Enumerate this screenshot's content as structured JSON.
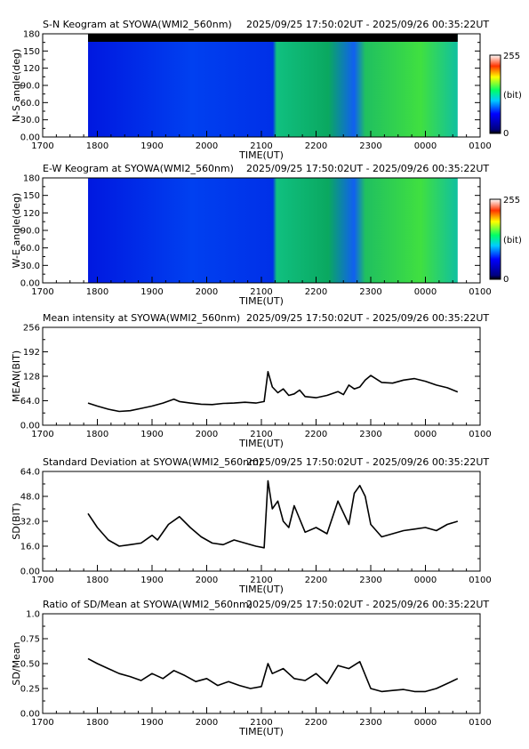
{
  "figure": {
    "station": "SYOWA",
    "instrument": "WMI2_560nm",
    "time_range": "2025/09/25 17:50:02UT - 2025/09/26 00:35:22UT",
    "xlabel": "TIME(UT)",
    "x_ticks": [
      "1700",
      "1800",
      "1900",
      "2000",
      "2100",
      "2200",
      "2300",
      "0000",
      "0100"
    ]
  },
  "keograms": [
    {
      "title": "S-N Keogram at SYOWA(WMI2_560nm)",
      "ylabel": "N-S angle(deg)",
      "y_ticks": [
        "0.00",
        "30.0",
        "60.0",
        "90.0",
        "120",
        "150",
        "180"
      ],
      "colorbar": {
        "min_label": "0",
        "max_label": "255",
        "unit_label": "(bit)"
      }
    },
    {
      "title": "E-W Keogram at SYOWA(WMI2_560nm)",
      "ylabel": "W-E angle(deg)",
      "y_ticks": [
        "0.00",
        "30.0",
        "60.0",
        "90.0",
        "120",
        "150",
        "180"
      ],
      "colorbar": {
        "min_label": "0",
        "max_label": "255",
        "unit_label": "(bit)"
      }
    }
  ],
  "chart_data": [
    {
      "type": "line",
      "title": "Mean intensity at SYOWA(WMI2_560nm)",
      "ylabel": "MEAN(BIT)",
      "xlabel": "TIME(UT)",
      "xlim": [
        17.0,
        25.0
      ],
      "ylim": [
        0,
        256
      ],
      "y_ticks": [
        "0.00",
        "64.0",
        "128",
        "192",
        "256"
      ],
      "x": [
        17.83,
        18.0,
        18.2,
        18.4,
        18.6,
        18.8,
        19.0,
        19.2,
        19.4,
        19.5,
        19.7,
        19.9,
        20.1,
        20.3,
        20.5,
        20.7,
        20.9,
        21.05,
        21.12,
        21.2,
        21.3,
        21.4,
        21.5,
        21.6,
        21.7,
        21.8,
        22.0,
        22.2,
        22.4,
        22.5,
        22.6,
        22.7,
        22.8,
        22.9,
        23.0,
        23.2,
        23.4,
        23.6,
        23.8,
        24.0,
        24.2,
        24.4,
        24.59
      ],
      "series": [
        {
          "values": [
            58,
            50,
            42,
            36,
            38,
            44,
            50,
            58,
            68,
            62,
            58,
            55,
            54,
            57,
            58,
            60,
            58,
            62,
            140,
            100,
            85,
            95,
            78,
            82,
            92,
            75,
            72,
            78,
            88,
            80,
            105,
            95,
            100,
            118,
            130,
            112,
            110,
            118,
            122,
            115,
            105,
            98,
            87
          ]
        }
      ]
    },
    {
      "type": "line",
      "title": "Standard Deviation at SYOWA(WMI2_560nm)",
      "ylabel": "SD(BIT)",
      "xlabel": "TIME(UT)",
      "xlim": [
        17.0,
        25.0
      ],
      "ylim": [
        0,
        64
      ],
      "y_ticks": [
        "0.00",
        "16.0",
        "32.0",
        "48.0",
        "64.0"
      ],
      "x": [
        17.83,
        18.0,
        18.2,
        18.4,
        18.6,
        18.8,
        19.0,
        19.1,
        19.3,
        19.5,
        19.7,
        19.9,
        20.1,
        20.3,
        20.5,
        20.7,
        20.9,
        21.05,
        21.12,
        21.2,
        21.3,
        21.4,
        21.5,
        21.6,
        21.8,
        22.0,
        22.2,
        22.4,
        22.6,
        22.7,
        22.8,
        22.9,
        23.0,
        23.2,
        23.4,
        23.6,
        23.8,
        24.0,
        24.2,
        24.4,
        24.59
      ],
      "series": [
        {
          "values": [
            37,
            28,
            20,
            16,
            17,
            18,
            23,
            20,
            30,
            35,
            28,
            22,
            18,
            17,
            20,
            18,
            16,
            15,
            58,
            40,
            45,
            32,
            28,
            42,
            25,
            28,
            24,
            45,
            30,
            50,
            55,
            48,
            30,
            22,
            24,
            26,
            27,
            28,
            26,
            30,
            32
          ]
        }
      ]
    },
    {
      "type": "line",
      "title": "Ratio of SD/Mean at SYOWA(WMI2_560nm)",
      "ylabel": "SD/Mean",
      "xlabel": "TIME(UT)",
      "xlim": [
        17.0,
        25.0
      ],
      "ylim": [
        0,
        1
      ],
      "y_ticks": [
        "0.00",
        "0.25",
        "0.50",
        "0.75",
        "1.0"
      ],
      "x": [
        17.83,
        18.0,
        18.2,
        18.4,
        18.6,
        18.8,
        19.0,
        19.2,
        19.4,
        19.6,
        19.8,
        20.0,
        20.2,
        20.4,
        20.6,
        20.8,
        21.0,
        21.12,
        21.2,
        21.4,
        21.6,
        21.8,
        22.0,
        22.2,
        22.4,
        22.6,
        22.8,
        23.0,
        23.2,
        23.4,
        23.6,
        23.8,
        24.0,
        24.2,
        24.4,
        24.59
      ],
      "series": [
        {
          "values": [
            0.55,
            0.5,
            0.45,
            0.4,
            0.37,
            0.33,
            0.4,
            0.35,
            0.43,
            0.38,
            0.32,
            0.35,
            0.28,
            0.32,
            0.28,
            0.25,
            0.27,
            0.5,
            0.4,
            0.45,
            0.35,
            0.33,
            0.4,
            0.3,
            0.48,
            0.45,
            0.52,
            0.25,
            0.22,
            0.23,
            0.24,
            0.22,
            0.22,
            0.25,
            0.3,
            0.35
          ]
        }
      ]
    }
  ]
}
